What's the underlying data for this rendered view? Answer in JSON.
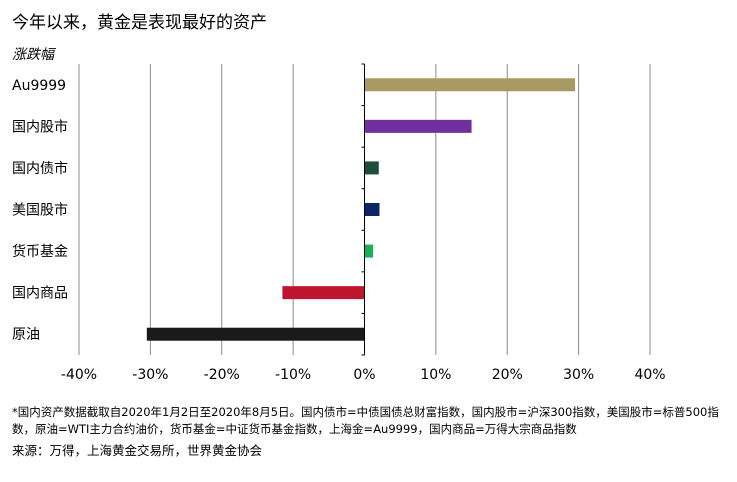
{
  "chart_data": {
    "type": "bar",
    "orientation": "horizontal",
    "title": "今年以来，黄金是表现最好的资产",
    "ylabel": "涨跌幅",
    "categories": [
      "Au9999",
      "国内股市",
      "国内债市",
      "美国股市",
      "货币基金",
      "国内商品",
      "原油"
    ],
    "values": [
      29.5,
      15.0,
      2.0,
      2.1,
      1.2,
      -11.5,
      -30.5
    ],
    "colors": [
      "#a89a62",
      "#7030a0",
      "#1e4d3a",
      "#0d2566",
      "#1ab05a",
      "#c0152f",
      "#1a1a1a"
    ],
    "xlim": [
      -40,
      40
    ],
    "xticks": [
      -40,
      -30,
      -20,
      -10,
      0,
      10,
      20,
      30,
      40
    ],
    "xtick_labels": [
      "-40%",
      "-30%",
      "-20%",
      "-10%",
      "0%",
      "10%",
      "20%",
      "30%",
      "40%"
    ],
    "grid": "vertical"
  },
  "footnote": "*国内资产数据截取自2020年1月2日至2020年8月5日。国内债市=中债国债总财富指数，国内股市=沪深300指数，美国股市=标普500指数，原油=WTI主力合约油价，货币基金=中证货币基金指数，上海金=Au9999，国内商品=万得大宗商品指数",
  "source": "来源：万得，上海黄金交易所，世界黄金协会"
}
